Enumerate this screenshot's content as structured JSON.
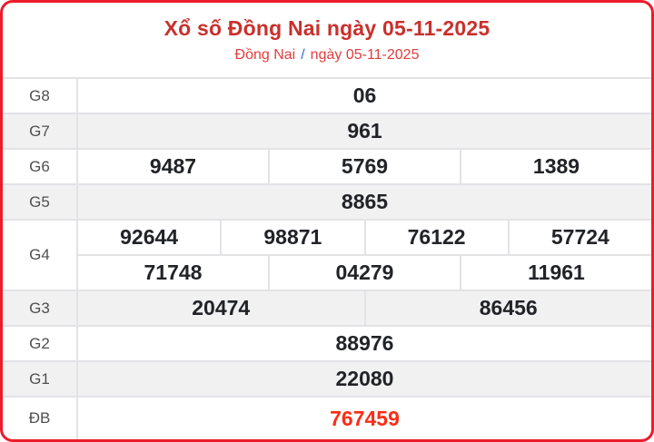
{
  "header": {
    "title": "Xổ số Đồng Nai ngày 05-11-2025",
    "breadcrumb": {
      "region": "Đồng Nai",
      "separator": "/",
      "date": "ngày 05-11-2025"
    }
  },
  "results": {
    "rows": [
      {
        "label": "G8",
        "numbers": [
          "06"
        ]
      },
      {
        "label": "G7",
        "numbers": [
          "961"
        ]
      },
      {
        "label": "G6",
        "numbers": [
          "9487",
          "5769",
          "1389"
        ]
      },
      {
        "label": "G5",
        "numbers": [
          "8865"
        ]
      },
      {
        "label": "G4",
        "lines": [
          [
            "92644",
            "98871",
            "76122",
            "57724"
          ],
          [
            "71748",
            "04279",
            "11961"
          ]
        ]
      },
      {
        "label": "G3",
        "numbers": [
          "20474",
          "86456"
        ]
      },
      {
        "label": "G2",
        "numbers": [
          "88976"
        ]
      },
      {
        "label": "G1",
        "numbers": [
          "22080"
        ]
      },
      {
        "label": "ĐB",
        "numbers": [
          "767459"
        ],
        "special": true
      }
    ]
  },
  "colors": {
    "outer_border": "#ec1c2b",
    "title_red": "#c9302c",
    "subtitle_red": "#e23c3c",
    "breadcrumb_slash_blue": "#3a6be0",
    "number_text": "#212327",
    "special_number_red": "#fb2d16",
    "row_alt_background": "#f1f1f2",
    "grid_border": "#e3e3e6",
    "label_text": "#4f4f4f"
  }
}
